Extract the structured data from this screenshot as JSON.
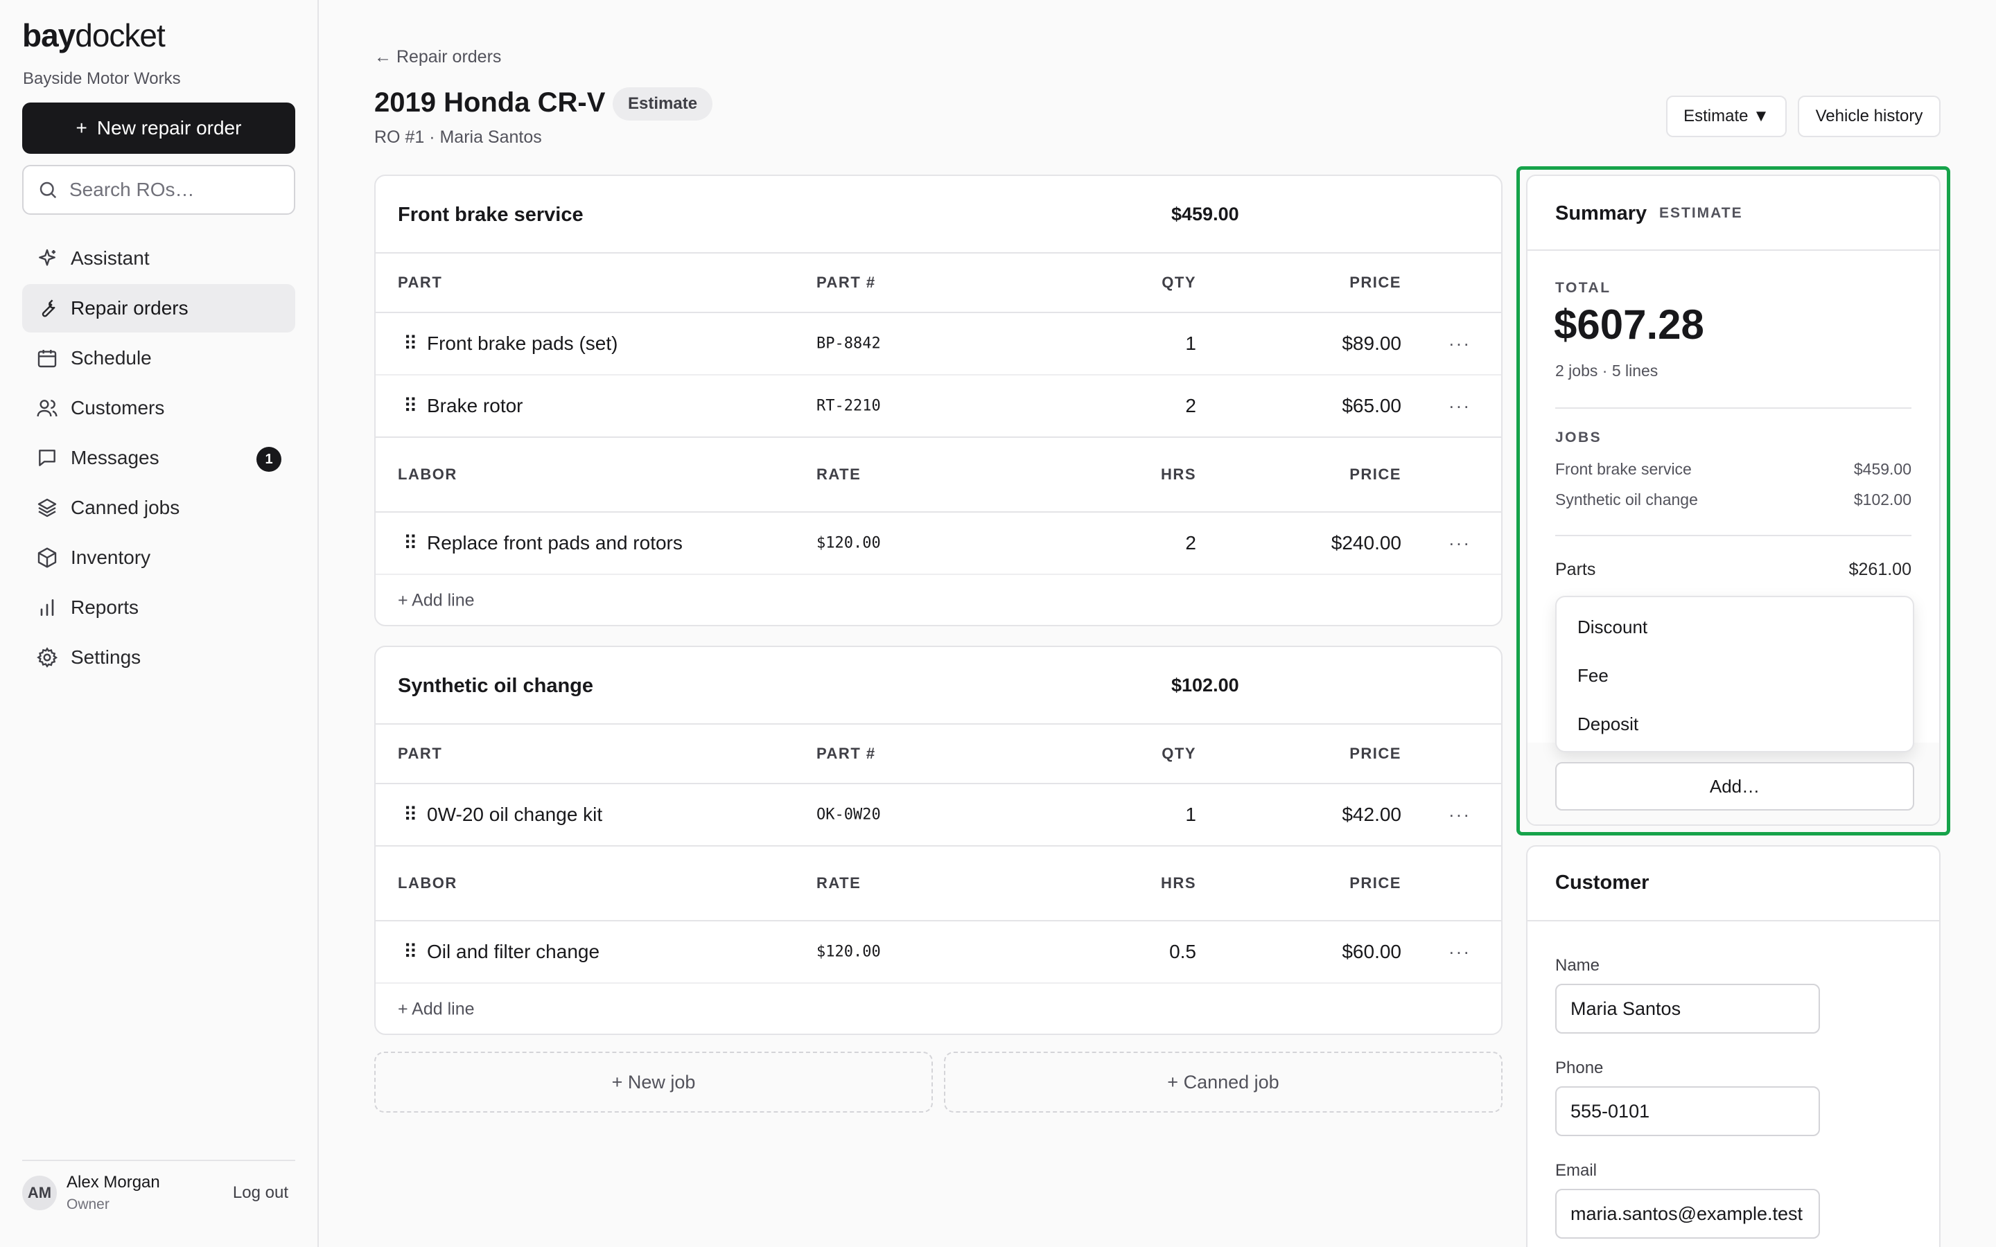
{
  "app": {
    "logo_bold": "bay",
    "logo_rest": "docket",
    "shop_name": "Bayside Motor Works",
    "new_ro_label": "New repair order",
    "search_placeholder": "Search ROs…"
  },
  "nav": [
    {
      "label": "Assistant",
      "icon": "sparkle-icon"
    },
    {
      "label": "Repair orders",
      "icon": "wrench-icon",
      "active": true
    },
    {
      "label": "Schedule",
      "icon": "calendar-icon"
    },
    {
      "label": "Customers",
      "icon": "users-icon"
    },
    {
      "label": "Messages",
      "icon": "message-icon",
      "badge": "1"
    },
    {
      "label": "Canned jobs",
      "icon": "layers-icon"
    },
    {
      "label": "Inventory",
      "icon": "box-icon"
    },
    {
      "label": "Reports",
      "icon": "bar-chart-icon"
    },
    {
      "label": "Settings",
      "icon": "gear-icon"
    }
  ],
  "user": {
    "initials": "AM",
    "name": "Alex Morgan",
    "role": "Owner",
    "logout": "Log out"
  },
  "header": {
    "back_label": "← Repair orders",
    "title": "2019 Honda CR-V",
    "status": "Estimate",
    "subtitle": "RO #1 · Maria Santos",
    "status_button": "Estimate ▼",
    "history_button": "Vehicle history"
  },
  "columns": {
    "part": "PART",
    "part_no": "PART #",
    "qty": "QTY",
    "price": "PRICE",
    "labor": "LABOR",
    "rate": "RATE",
    "hrs": "HRS"
  },
  "jobs": [
    {
      "name": "Front brake service",
      "total": "$459.00",
      "parts": [
        {
          "desc": "Front brake pads (set)",
          "part_no": "BP-8842",
          "qty": "1",
          "price": "$89.00"
        },
        {
          "desc": "Brake rotor",
          "part_no": "RT-2210",
          "qty": "2",
          "price": "$65.00"
        }
      ],
      "labor": [
        {
          "desc": "Replace front pads and rotors",
          "rate": "$120.00",
          "hrs": "2",
          "price": "$240.00"
        }
      ],
      "add_line": "+ Add line"
    },
    {
      "name": "Synthetic oil change",
      "total": "$102.00",
      "parts": [
        {
          "desc": "0W-20 oil change kit",
          "part_no": "OK-0W20",
          "qty": "1",
          "price": "$42.00"
        }
      ],
      "labor": [
        {
          "desc": "Oil and filter change",
          "rate": "$120.00",
          "hrs": "0.5",
          "price": "$60.00"
        }
      ],
      "add_line": "+ Add line"
    }
  ],
  "job_actions": {
    "new_job": "+ New job",
    "canned_job": "+ Canned job"
  },
  "summary": {
    "title": "Summary",
    "tag": "ESTIMATE",
    "total_label": "TOTAL",
    "total": "$607.28",
    "meta": "2 jobs · 5 lines",
    "jobs_label": "JOBS",
    "job_lines": [
      {
        "name": "Front brake service",
        "amount": "$459.00"
      },
      {
        "name": "Synthetic oil change",
        "amount": "$102.00"
      }
    ],
    "parts_label": "Parts",
    "parts_amount": "$261.00",
    "menu": [
      "Discount",
      "Fee",
      "Deposit"
    ],
    "add_button": "Add…",
    "highlight_color": "#16a34a"
  },
  "customer": {
    "title": "Customer",
    "name_label": "Name",
    "name": "Maria Santos",
    "phone_label": "Phone",
    "phone": "555-0101",
    "email_label": "Email",
    "email": "maria.santos@example.test"
  }
}
